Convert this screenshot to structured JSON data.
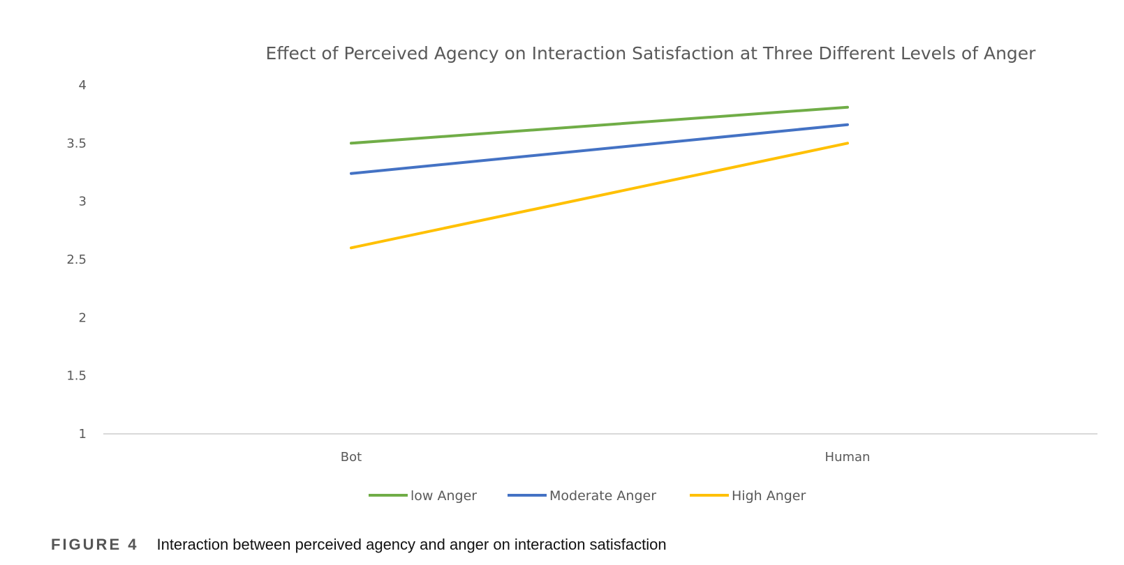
{
  "chart_data": {
    "type": "line",
    "title": "Effect of Perceived Agency on Interaction Satisfaction at Three Different Levels of Anger",
    "categories": [
      "Bot",
      "Human"
    ],
    "ylim": [
      1,
      4
    ],
    "yticks": [
      1,
      1.5,
      2,
      2.5,
      3,
      3.5,
      4
    ],
    "ytick_labels": [
      "1",
      "1.5",
      "2",
      "2.5",
      "3",
      "3.5",
      "4"
    ],
    "grid": false,
    "legend_position": "bottom",
    "series": [
      {
        "name": "low Anger",
        "color": "#70ad47",
        "values": [
          3.5,
          3.81
        ]
      },
      {
        "name": "Moderate Anger",
        "color": "#4472c4",
        "values": [
          3.24,
          3.66
        ]
      },
      {
        "name": "High Anger",
        "color": "#ffc000",
        "values": [
          2.6,
          3.5
        ]
      }
    ],
    "axis_color": "#d9d9d9"
  },
  "caption": {
    "label": "FIGURE 4",
    "text": "Interaction between perceived agency and anger on interaction satisfaction"
  }
}
